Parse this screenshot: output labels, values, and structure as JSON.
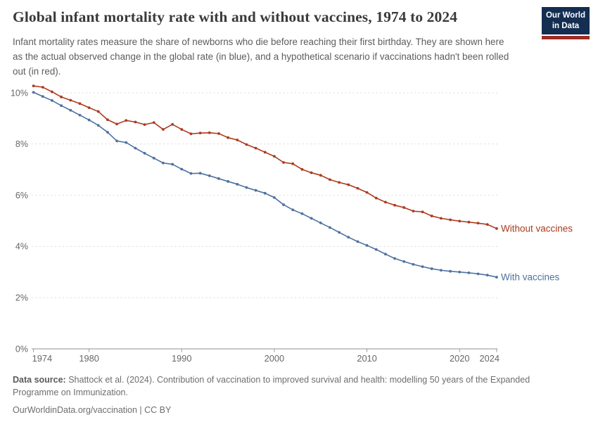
{
  "header": {
    "title": "Global infant mortality rate with and without vaccines, 1974 to 2024",
    "subtitle": "Infant mortality rates measure the share of newborns who die before reaching their first birthday. They are shown here as the actual observed change in the global rate (in blue), and a hypothetical scenario if vaccinations hadn't been rolled out (in red).",
    "logo": {
      "line1": "Our World",
      "line2": "in Data"
    }
  },
  "chart_data": {
    "type": "line",
    "x": [
      1974,
      1975,
      1976,
      1977,
      1978,
      1979,
      1980,
      1981,
      1982,
      1983,
      1984,
      1985,
      1986,
      1987,
      1988,
      1989,
      1990,
      1991,
      1992,
      1993,
      1994,
      1995,
      1996,
      1997,
      1998,
      1999,
      2000,
      2001,
      2002,
      2003,
      2004,
      2005,
      2006,
      2007,
      2008,
      2009,
      2010,
      2011,
      2012,
      2013,
      2014,
      2015,
      2016,
      2017,
      2018,
      2019,
      2020,
      2021,
      2022,
      2023,
      2024
    ],
    "series": [
      {
        "name": "Without vaccines",
        "color": "#AC3A1D",
        "values": [
          10.27,
          10.22,
          10.04,
          9.84,
          9.71,
          9.58,
          9.42,
          9.27,
          8.95,
          8.78,
          8.92,
          8.86,
          8.76,
          8.84,
          8.57,
          8.77,
          8.57,
          8.4,
          8.43,
          8.44,
          8.41,
          8.25,
          8.16,
          7.98,
          7.84,
          7.68,
          7.52,
          7.28,
          7.23,
          7.01,
          6.88,
          6.78,
          6.61,
          6.5,
          6.41,
          6.27,
          6.11,
          5.89,
          5.73,
          5.61,
          5.52,
          5.38,
          5.35,
          5.19,
          5.1,
          5.04,
          4.99,
          4.95,
          4.91,
          4.86,
          4.7
        ]
      },
      {
        "name": "With vaccines",
        "color": "#4E71A0",
        "values": [
          10.02,
          9.86,
          9.7,
          9.5,
          9.32,
          9.13,
          8.94,
          8.73,
          8.46,
          8.12,
          8.06,
          7.84,
          7.64,
          7.45,
          7.26,
          7.21,
          7.02,
          6.85,
          6.86,
          6.76,
          6.65,
          6.54,
          6.43,
          6.3,
          6.19,
          6.08,
          5.91,
          5.63,
          5.43,
          5.28,
          5.1,
          4.92,
          4.74,
          4.55,
          4.36,
          4.19,
          4.04,
          3.88,
          3.7,
          3.53,
          3.41,
          3.3,
          3.21,
          3.13,
          3.07,
          3.03,
          3.0,
          2.97,
          2.93,
          2.88,
          2.8
        ]
      }
    ],
    "y_ticks": [
      0,
      2,
      4,
      6,
      8,
      10
    ],
    "y_tick_suffix": "%",
    "x_ticks": [
      1974,
      1980,
      1990,
      2000,
      2010,
      2020,
      2024
    ],
    "ylim": [
      0,
      10.6
    ],
    "xlim": [
      1974,
      2024
    ],
    "grid": "horizontal-dashed",
    "legend_position": "end-of-line-labels",
    "title": "Global infant mortality rate with and without vaccines, 1974 to 2024",
    "xlabel": "",
    "ylabel": ""
  },
  "style": {
    "grid_color": "#d9d9d9",
    "axis_color": "#8f8f8f",
    "tick_color": "#999999",
    "tick_label_color": "#666666"
  },
  "footer": {
    "source_label": "Data source:",
    "source_text": "Shattock et al. (2024). Contribution of vaccination to improved survival and health: modelling 50 years of the Expanded Programme on Immunization.",
    "link": "OurWorldinData.org/vaccination",
    "license": " | CC BY"
  }
}
